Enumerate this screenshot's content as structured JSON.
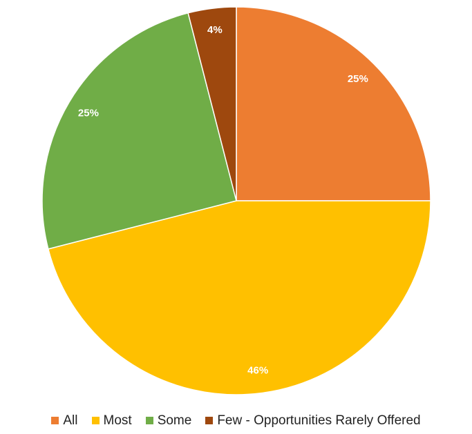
{
  "chart_data": {
    "type": "pie",
    "categories": [
      "All",
      "Most",
      "Some",
      "Few - Opportunities Rarely Offered"
    ],
    "values": [
      25,
      46,
      25,
      4
    ],
    "value_labels": [
      "25%",
      "46%",
      "25%",
      "4%"
    ],
    "colors": [
      "#ED7D31",
      "#FFC000",
      "#70AD47",
      "#9E480E"
    ],
    "legend": "bottom"
  }
}
